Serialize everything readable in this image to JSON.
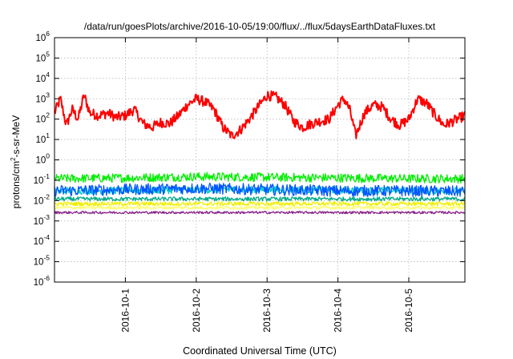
{
  "chart_data": {
    "type": "line",
    "title": "/data/run/goesPlots/archive/2016-10-05/19:00/flux/../flux/5daysEarthDataFluxes.txt",
    "xlabel": "Coordinated Universal Time (UTC)",
    "ylabel": {
      "base": "protons/cm",
      "sup": "2",
      "rest": "-s-sr-MeV"
    },
    "yscale": "log",
    "ylim": [
      1e-06,
      1000000.0
    ],
    "xlim": [
      "2016-09-30T00:00",
      "2016-10-05T19:00"
    ],
    "grid": true,
    "legend": "none",
    "x_ticks": [
      {
        "date": "2016-10-01",
        "label": "2016-10-1"
      },
      {
        "date": "2016-10-02",
        "label": "2016-10-2"
      },
      {
        "date": "2016-10-03",
        "label": "2016-10-3"
      },
      {
        "date": "2016-10-04",
        "label": "2016-10-4"
      },
      {
        "date": "2016-10-05",
        "label": "2016-10-5"
      }
    ],
    "y_ticks": [
      {
        "base": "10",
        "exp": "-6"
      },
      {
        "base": "10",
        "exp": "-5"
      },
      {
        "base": "10",
        "exp": "-4"
      },
      {
        "base": "10",
        "exp": "-3"
      },
      {
        "base": "10",
        "exp": "-2"
      },
      {
        "base": "10",
        "exp": "-1"
      },
      {
        "base": "10",
        "exp": "0"
      },
      {
        "base": "10",
        "exp": "1"
      },
      {
        "base": "10",
        "exp": "2"
      },
      {
        "base": "10",
        "exp": "3"
      },
      {
        "base": "10",
        "exp": "4"
      },
      {
        "base": "10",
        "exp": "5"
      },
      {
        "base": "10",
        "exp": "6"
      }
    ],
    "series": [
      {
        "color": "#ff0000",
        "noise": 0.25,
        "x": [
          "2016-09-30T00:00",
          "2016-09-30T02:00",
          "2016-09-30T04:00",
          "2016-09-30T06:00",
          "2016-09-30T08:00",
          "2016-09-30T10:00",
          "2016-09-30T12:00",
          "2016-09-30T15:00",
          "2016-09-30T18:00",
          "2016-09-30T21:00",
          "2016-10-01T00:00",
          "2016-10-01T03:00",
          "2016-10-01T06:00",
          "2016-10-01T09:00",
          "2016-10-01T12:00",
          "2016-10-01T15:00",
          "2016-10-01T18:00",
          "2016-10-01T21:00",
          "2016-10-02T00:00",
          "2016-10-02T03:00",
          "2016-10-02T06:00",
          "2016-10-02T09:00",
          "2016-10-02T12:00",
          "2016-10-02T15:00",
          "2016-10-02T18:00",
          "2016-10-02T21:00",
          "2016-10-03T00:00",
          "2016-10-03T03:00",
          "2016-10-03T06:00",
          "2016-10-03T09:00",
          "2016-10-03T12:00",
          "2016-10-03T15:00",
          "2016-10-03T18:00",
          "2016-10-03T21:00",
          "2016-10-04T00:00",
          "2016-10-04T02:00",
          "2016-10-04T04:00",
          "2016-10-04T06:00",
          "2016-10-04T09:00",
          "2016-10-04T12:00",
          "2016-10-04T15:00",
          "2016-10-04T18:00",
          "2016-10-04T21:00",
          "2016-10-05T00:00",
          "2016-10-05T03:00",
          "2016-10-05T06:00",
          "2016-10-05T09:00",
          "2016-10-05T12:00",
          "2016-10-05T15:00",
          "2016-10-05T19:00"
        ],
        "y": [
          200,
          1000,
          50,
          300,
          100,
          1500,
          200,
          150,
          200,
          120,
          150,
          300,
          60,
          40,
          70,
          60,
          150,
          500,
          1000,
          700,
          300,
          40,
          15,
          30,
          100,
          400,
          1500,
          1200,
          500,
          80,
          40,
          60,
          80,
          100,
          500,
          1000,
          300,
          15,
          200,
          500,
          400,
          100,
          50,
          100,
          1000,
          600,
          150,
          50,
          80,
          150
        ]
      },
      {
        "color": "#00ee00",
        "noise": 0.22,
        "x": [
          "2016-09-30T00:00",
          "2016-10-01T00:00",
          "2016-10-02T00:00",
          "2016-10-03T00:00",
          "2016-10-04T00:00",
          "2016-10-05T00:00",
          "2016-10-05T19:00"
        ],
        "y": [
          0.12,
          0.13,
          0.15,
          0.14,
          0.13,
          0.12,
          0.12
        ]
      },
      {
        "color": "#00cccc",
        "noise": 0.18,
        "x": [
          "2016-09-30T00:00",
          "2016-10-02T12:00",
          "2016-10-05T19:00"
        ],
        "y": [
          0.03,
          0.035,
          0.03
        ]
      },
      {
        "color": "#0055ff",
        "noise": 0.28,
        "x": [
          "2016-09-30T00:00",
          "2016-10-01T00:00",
          "2016-10-02T00:00",
          "2016-10-03T00:00",
          "2016-10-04T00:00",
          "2016-10-05T00:00",
          "2016-10-05T19:00"
        ],
        "y": [
          0.03,
          0.035,
          0.04,
          0.035,
          0.03,
          0.03,
          0.028
        ]
      },
      {
        "color": "#00aa88",
        "noise": 0.1,
        "x": [
          "2016-09-30T00:00",
          "2016-10-05T19:00"
        ],
        "y": [
          0.012,
          0.012
        ]
      },
      {
        "color": "#eeee00",
        "noise": 0.1,
        "x": [
          "2016-09-30T00:00",
          "2016-10-05T19:00"
        ],
        "y": [
          0.007,
          0.007
        ]
      },
      {
        "color": "#ffff66",
        "noise": 0.08,
        "x": [
          "2016-09-30T00:00",
          "2016-10-05T19:00"
        ],
        "y": [
          0.0045,
          0.0045
        ]
      },
      {
        "color": "#882288",
        "noise": 0.06,
        "x": [
          "2016-09-30T00:00",
          "2016-10-05T19:00"
        ],
        "y": [
          0.0026,
          0.0026
        ]
      }
    ]
  }
}
